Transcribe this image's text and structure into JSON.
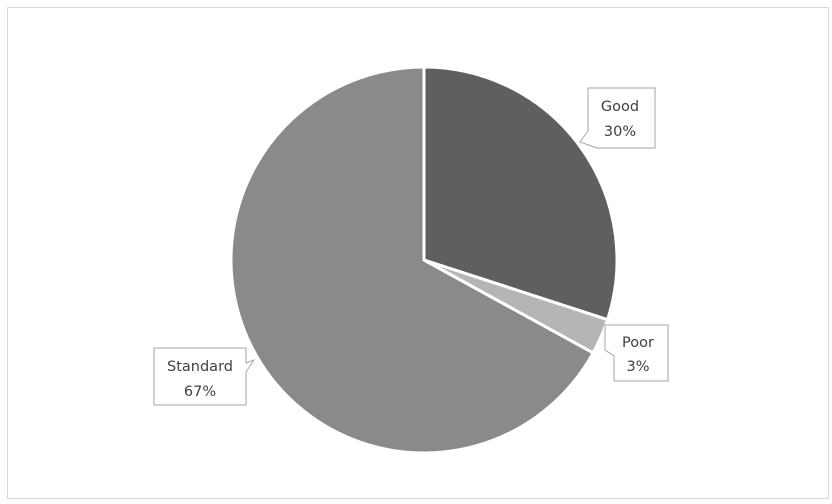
{
  "chart_data": {
    "type": "pie",
    "title": "",
    "slices": [
      {
        "name": "Good",
        "percent_label": "30%",
        "value": 30,
        "color": "#5f5f5f"
      },
      {
        "name": "Poor",
        "percent_label": "3%",
        "value": 3,
        "color": "#b5b5b5"
      },
      {
        "name": "Standard",
        "percent_label": "67%",
        "value": 67,
        "color": "#8a8a8a"
      }
    ],
    "start": "12 o'clock, clockwise",
    "legend": "none",
    "data_labels": "callouts with category name and percentage"
  }
}
